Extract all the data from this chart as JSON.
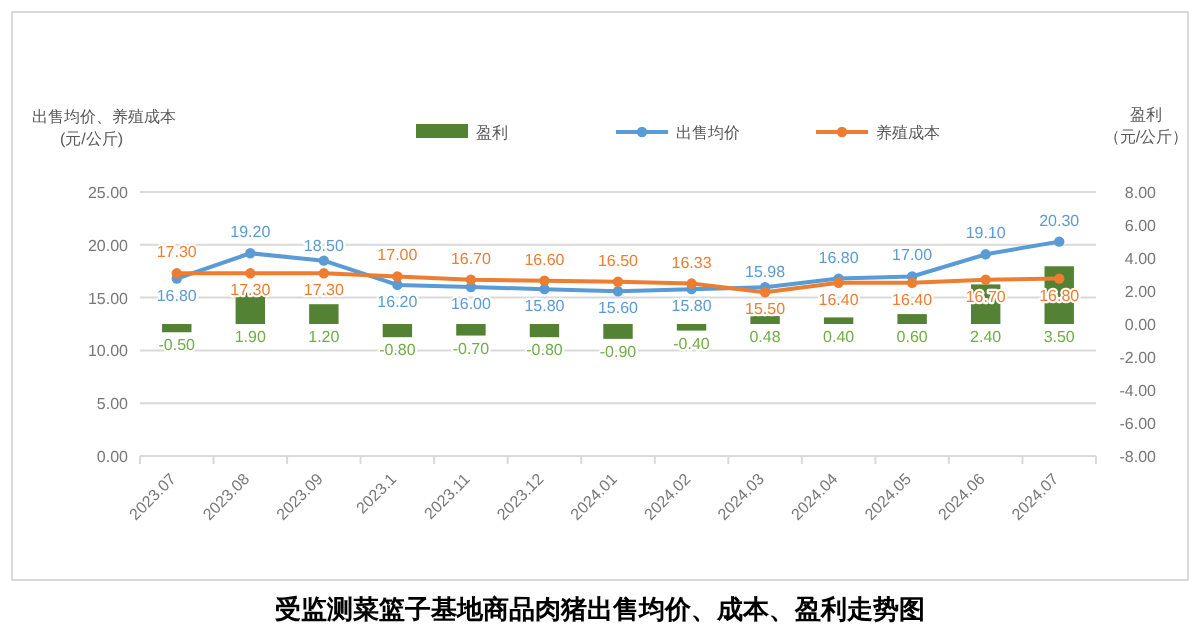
{
  "chart_data": {
    "type": "bar",
    "title": "受监测菜篮子基地商品肉猪出售均价、成本、盈利走势图",
    "ylabel": "出售均价、养殖成本(元/公斤)",
    "y2label": "盈利（元/公斤）",
    "categories": [
      "2023.07",
      "2023.08",
      "2023.09",
      "2023.1",
      "2023.11",
      "2023.12",
      "2024.01",
      "2024.02",
      "2024.03",
      "2024.04",
      "2024.05",
      "2024.06",
      "2024.07"
    ],
    "series": [
      {
        "name": "盈利",
        "axis": "y2",
        "color": "#548235",
        "values": [
          -0.5,
          1.9,
          1.2,
          -0.8,
          -0.7,
          -0.8,
          -0.9,
          -0.4,
          0.48,
          0.4,
          0.6,
          2.4,
          3.5
        ],
        "value_labels": [
          "-0.50",
          "1.90",
          "1.20",
          "-0.80",
          "-0.70",
          "-0.80",
          "-0.90",
          "-0.40",
          "0.48",
          "0.40",
          "0.60",
          "2.40",
          "3.50"
        ]
      },
      {
        "name": "出售均价",
        "type": "line",
        "color": "#5b9bd5",
        "values": [
          16.8,
          19.2,
          18.5,
          16.2,
          16.0,
          15.8,
          15.6,
          15.8,
          15.98,
          16.8,
          17.0,
          19.1,
          20.3
        ],
        "value_labels": [
          "16.80",
          "19.20",
          "18.50",
          "16.20",
          "16.00",
          "15.80",
          "15.60",
          "15.80",
          "15.98",
          "16.80",
          "17.00",
          "19.10",
          "20.30"
        ]
      },
      {
        "name": "养殖成本",
        "type": "line",
        "color": "#ed7d31",
        "values": [
          17.3,
          17.3,
          17.3,
          17.0,
          16.7,
          16.6,
          16.5,
          16.33,
          15.5,
          16.4,
          16.4,
          16.7,
          16.8
        ],
        "value_labels": [
          "17.30",
          "17.30",
          "17.30",
          "17.00",
          "16.70",
          "16.60",
          "16.50",
          "16.33",
          "15.50",
          "16.40",
          "16.40",
          "16.70",
          "16.80"
        ]
      }
    ],
    "ylim": [
      0,
      25
    ],
    "yticks": [
      {
        "value": 0,
        "label": "0.00"
      },
      {
        "value": 5,
        "label": "5.00"
      },
      {
        "value": 10,
        "label": "10.00"
      },
      {
        "value": 15,
        "label": "15.00"
      },
      {
        "value": 20,
        "label": "20.00"
      },
      {
        "value": 25,
        "label": "25.00"
      }
    ],
    "y2lim": [
      -8,
      8
    ],
    "y2ticks": [
      {
        "value": -8,
        "label": "-8.00"
      },
      {
        "value": -6,
        "label": "-6.00"
      },
      {
        "value": -4,
        "label": "-4.00"
      },
      {
        "value": -2,
        "label": "-2.00"
      },
      {
        "value": 0,
        "label": "0.00"
      },
      {
        "value": 2,
        "label": "2.00"
      },
      {
        "value": 4,
        "label": "4.00"
      },
      {
        "value": 6,
        "label": "6.00"
      },
      {
        "value": 8,
        "label": "8.00"
      }
    ],
    "grid": "y",
    "legend": "top",
    "marker": "circle"
  }
}
